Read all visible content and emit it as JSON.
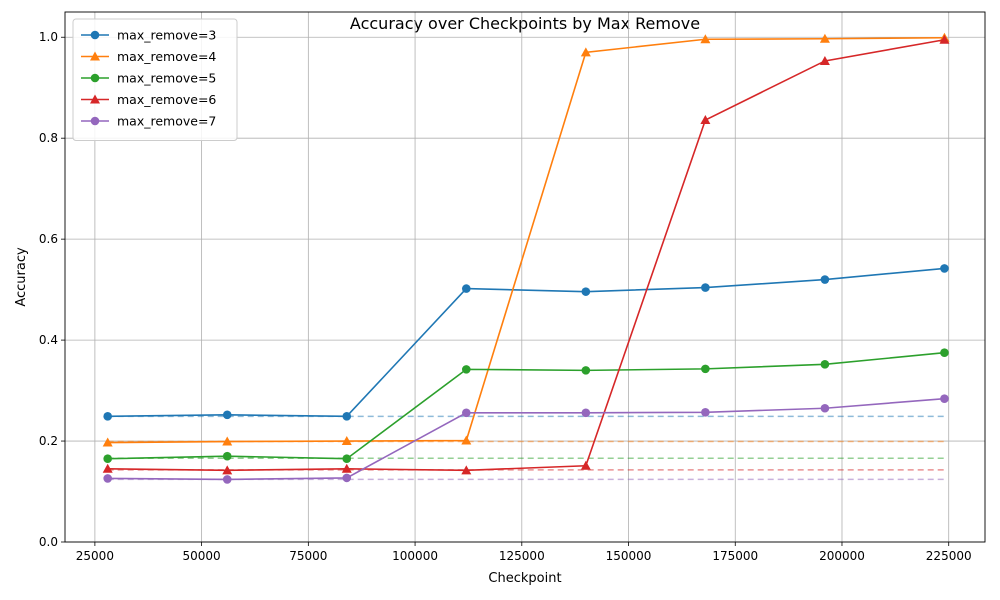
{
  "chart_data": {
    "type": "line",
    "title": "Accuracy over Checkpoints by Max Remove",
    "xlabel": "Checkpoint",
    "ylabel": "Accuracy",
    "xlim": [
      18000,
      233500
    ],
    "ylim": [
      0.0,
      1.05
    ],
    "xticks": [
      25000,
      50000,
      75000,
      100000,
      125000,
      150000,
      175000,
      200000,
      225000
    ],
    "yticks": [
      0.0,
      0.2,
      0.4,
      0.6,
      0.8,
      1.0
    ],
    "grid": true,
    "legend_position": "upper-left",
    "x": [
      28000,
      56000,
      84000,
      112000,
      140000,
      168000,
      196000,
      224000
    ],
    "series": [
      {
        "name": "max_remove=3",
        "color": "#1f77b4",
        "marker": "circle",
        "values": [
          0.249,
          0.252,
          0.249,
          0.502,
          0.496,
          0.504,
          0.52,
          0.542
        ],
        "baseline": 0.249
      },
      {
        "name": "max_remove=4",
        "color": "#ff7f0e",
        "marker": "triangle",
        "values": [
          0.197,
          0.199,
          0.2,
          0.201,
          0.97,
          0.996,
          0.997,
          0.999
        ],
        "baseline": 0.199
      },
      {
        "name": "max_remove=5",
        "color": "#2ca02c",
        "marker": "circle",
        "values": [
          0.165,
          0.17,
          0.165,
          0.342,
          0.34,
          0.343,
          0.352,
          0.375
        ],
        "baseline": 0.166
      },
      {
        "name": "max_remove=6",
        "color": "#d62728",
        "marker": "triangle",
        "values": [
          0.145,
          0.142,
          0.145,
          0.142,
          0.151,
          0.836,
          0.953,
          0.995
        ],
        "baseline": 0.143
      },
      {
        "name": "max_remove=7",
        "color": "#9467bd",
        "marker": "circle",
        "values": [
          0.126,
          0.124,
          0.127,
          0.256,
          0.256,
          0.257,
          0.265,
          0.284
        ],
        "baseline": 0.124
      }
    ]
  }
}
